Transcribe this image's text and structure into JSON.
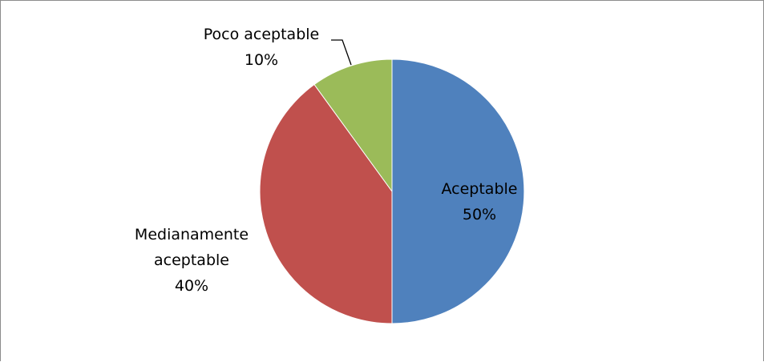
{
  "chart_data": {
    "type": "pie",
    "categories": [
      "Aceptable",
      "Medianamente aceptable",
      "Poco aceptable"
    ],
    "values": [
      50,
      40,
      10
    ],
    "value_labels": [
      "50%",
      "40%",
      "10%"
    ],
    "label_lines": [
      [
        "Aceptable"
      ],
      [
        "Medianamente",
        "aceptable"
      ],
      [
        "Poco aceptable"
      ]
    ],
    "colors": [
      "#4f81bd",
      "#c0504d",
      "#9bbb59"
    ],
    "title": "",
    "legend": "none"
  }
}
